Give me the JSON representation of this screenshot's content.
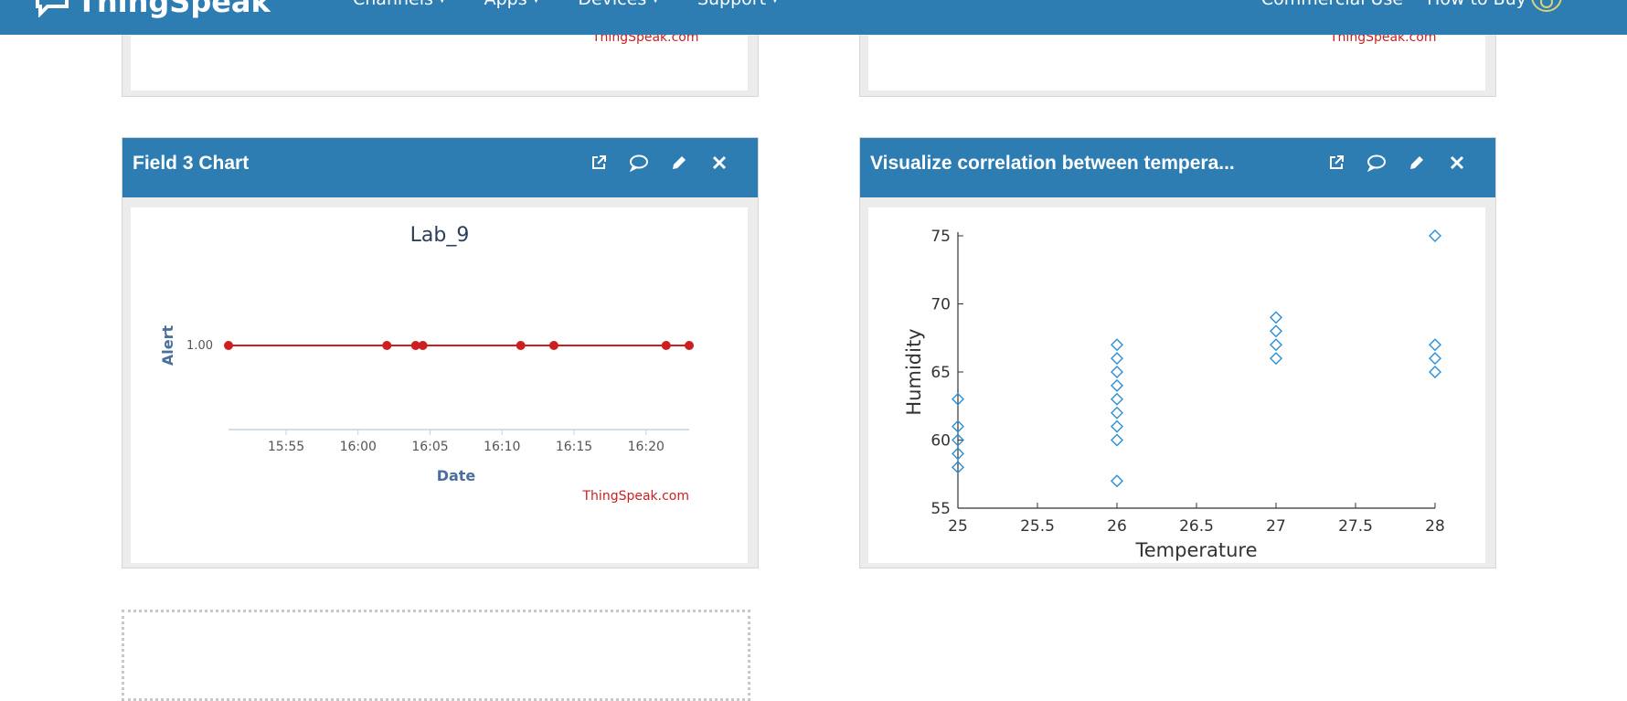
{
  "navbar": {
    "brand": "ThingSpeak",
    "links": [
      {
        "label": "Channels"
      },
      {
        "label": "Apps"
      },
      {
        "label": "Devices"
      },
      {
        "label": "Support"
      }
    ],
    "right_links": [
      {
        "label": "Commercial Use"
      },
      {
        "label": "How to Buy"
      }
    ]
  },
  "top_panels": {
    "left_credit": "ThingSpeak.com",
    "right_credit": "ThingSpeak.com"
  },
  "panel_field3": {
    "title": "Field 3 Chart",
    "tools": [
      "external-link-icon",
      "comment-icon",
      "pencil-icon",
      "close-icon"
    ],
    "chart_data": {
      "type": "line",
      "title": "Lab_9",
      "xlabel": "Date",
      "ylabel": "Alert",
      "x_tick_labels": [
        "15:55",
        "16:00",
        "16:05",
        "16:10",
        "16:15",
        "16:20"
      ],
      "y_tick_labels": [
        "1.00"
      ],
      "x_range": [
        "15:51",
        "16:23"
      ],
      "series": [
        {
          "color": "#cc1f1f",
          "points": [
            {
              "x": "15:51",
              "y": 1
            },
            {
              "x": "16:02",
              "y": 1
            },
            {
              "x": "16:04",
              "y": 1
            },
            {
              "x": "16:04.5",
              "y": 1
            },
            {
              "x": "16:11.3",
              "y": 1
            },
            {
              "x": "16:13.6",
              "y": 1
            },
            {
              "x": "16:21.4",
              "y": 1
            },
            {
              "x": "16:23",
              "y": 1
            }
          ]
        }
      ],
      "credit": "ThingSpeak.com"
    }
  },
  "panel_corr": {
    "title": "Visualize correlation between tempera...",
    "tools": [
      "external-link-icon",
      "comment-icon",
      "pencil-icon",
      "close-icon"
    ],
    "chart_data": {
      "type": "scatter",
      "xlabel": "Temperature",
      "ylabel": "Humidity",
      "xlim": [
        25,
        28
      ],
      "ylim": [
        55,
        75
      ],
      "x_ticks": [
        "25",
        "25.5",
        "26",
        "26.5",
        "27",
        "27.5",
        "28"
      ],
      "y_ticks": [
        "55",
        "60",
        "65",
        "70",
        "75"
      ],
      "marker_color": "#2b8fd6",
      "points": [
        {
          "x": 25,
          "y": 63
        },
        {
          "x": 25,
          "y": 61
        },
        {
          "x": 25,
          "y": 60
        },
        {
          "x": 25,
          "y": 59
        },
        {
          "x": 25,
          "y": 58
        },
        {
          "x": 26,
          "y": 67
        },
        {
          "x": 26,
          "y": 66
        },
        {
          "x": 26,
          "y": 65
        },
        {
          "x": 26,
          "y": 64
        },
        {
          "x": 26,
          "y": 63
        },
        {
          "x": 26,
          "y": 62
        },
        {
          "x": 26,
          "y": 61
        },
        {
          "x": 26,
          "y": 60
        },
        {
          "x": 26,
          "y": 57
        },
        {
          "x": 27,
          "y": 69
        },
        {
          "x": 27,
          "y": 68
        },
        {
          "x": 27,
          "y": 67
        },
        {
          "x": 27,
          "y": 66
        },
        {
          "x": 28,
          "y": 75
        },
        {
          "x": 28,
          "y": 67
        },
        {
          "x": 28,
          "y": 66
        },
        {
          "x": 28,
          "y": 65
        }
      ]
    }
  }
}
